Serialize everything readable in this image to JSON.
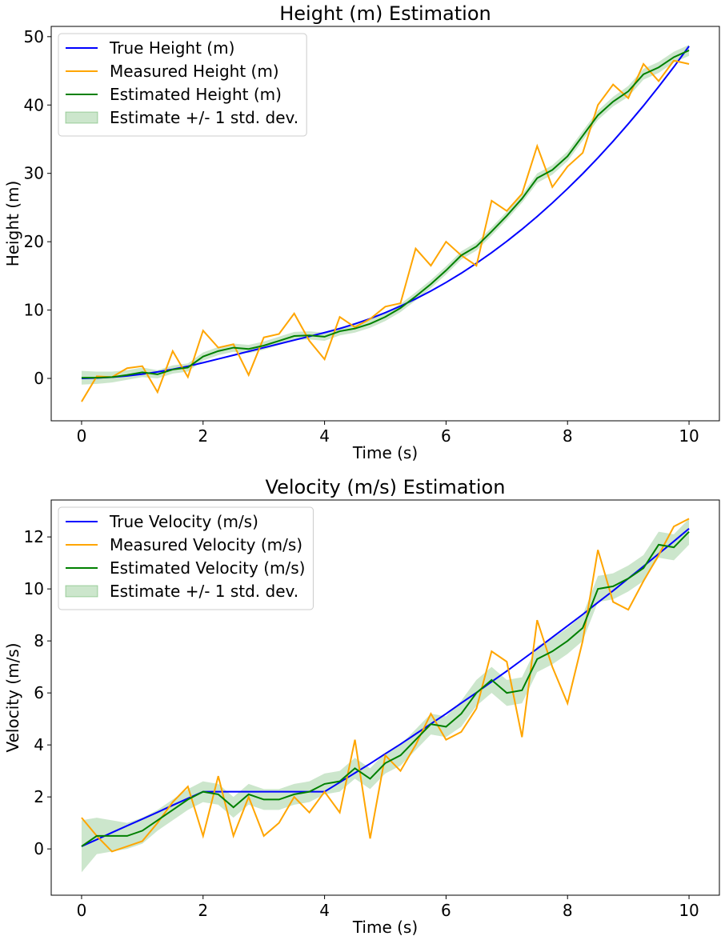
{
  "chart_data": [
    {
      "type": "line",
      "title": "Height (m) Estimation",
      "x_label": "Time (s)",
      "y_label": "Height (m)",
      "x": [
        0,
        0.25,
        0.5,
        0.75,
        1,
        1.25,
        1.5,
        1.75,
        2,
        2.25,
        2.5,
        2.75,
        3,
        3.25,
        3.5,
        3.75,
        4,
        4.25,
        4.5,
        4.75,
        5,
        5.25,
        5.5,
        5.75,
        6,
        6.25,
        6.5,
        6.75,
        7,
        7.25,
        7.5,
        7.75,
        8,
        8.25,
        8.5,
        8.75,
        9,
        9.25,
        9.5,
        9.75,
        10
      ],
      "series": [
        {
          "name": "True Height (m)",
          "color": "#0000ff",
          "values": [
            0,
            0.06,
            0.18,
            0.37,
            0.63,
            0.95,
            1.33,
            1.78,
            2.3,
            2.85,
            3.4,
            3.95,
            4.5,
            5.05,
            5.6,
            6.15,
            6.7,
            7.29,
            7.98,
            8.75,
            9.62,
            10.58,
            11.64,
            12.79,
            14.04,
            15.39,
            16.85,
            18.4,
            20.06,
            21.82,
            23.69,
            25.67,
            27.76,
            29.95,
            32.27,
            34.7,
            37.24,
            39.89,
            42.68,
            45.57,
            48.6
          ]
        },
        {
          "name": "Measured Height (m)",
          "color": "#ffa500",
          "values": [
            -3.4,
            0.3,
            0.2,
            1.5,
            1.8,
            -2.0,
            4.0,
            0.2,
            7.0,
            4.5,
            5.0,
            0.5,
            6.0,
            6.5,
            9.5,
            5.5,
            2.8,
            9.0,
            7.5,
            8.7,
            10.5,
            11.0,
            19.0,
            16.5,
            20.0,
            18.0,
            16.5,
            26.0,
            24.5,
            27.0,
            34.0,
            28.0,
            31.0,
            33.0,
            40.0,
            43.0,
            41.0,
            46.0,
            43.5,
            46.5,
            46.0
          ]
        },
        {
          "name": "Estimated Height (m)",
          "color": "#008000",
          "values": [
            0.1,
            0.1,
            0.2,
            0.5,
            0.9,
            0.6,
            1.3,
            1.6,
            3.2,
            4.0,
            4.5,
            4.3,
            4.8,
            5.5,
            6.2,
            6.3,
            6.1,
            6.9,
            7.3,
            8.0,
            9.0,
            10.3,
            12.0,
            13.8,
            15.8,
            18.0,
            19.3,
            21.5,
            23.8,
            26.3,
            29.3,
            30.5,
            32.5,
            35.5,
            38.5,
            40.5,
            42.0,
            44.5,
            45.5,
            47.0,
            48.0
          ]
        }
      ],
      "band": {
        "name": "Estimate +/- 1 std. dev.",
        "color": "#008000",
        "values": [
          1.0,
          0.9,
          0.8,
          0.7,
          0.7,
          0.6,
          0.6,
          0.6,
          0.6,
          0.6,
          0.6,
          0.6,
          0.6,
          0.6,
          0.6,
          0.6,
          0.6,
          0.6,
          0.6,
          0.6,
          0.6,
          0.6,
          0.6,
          0.6,
          0.6,
          0.6,
          0.6,
          0.6,
          0.6,
          0.6,
          0.7,
          0.7,
          0.7,
          0.7,
          0.7,
          0.7,
          0.8,
          0.8,
          0.8,
          0.8,
          0.8
        ]
      },
      "xlim": [
        -0.5,
        10.5
      ],
      "xticks": [
        0,
        2,
        4,
        6,
        8,
        10
      ],
      "ylim": [
        -6.2,
        51.5
      ],
      "yticks": [
        0,
        10,
        20,
        30,
        40,
        50
      ],
      "legend": "upper left"
    },
    {
      "type": "line",
      "title": "Velocity (m/s) Estimation",
      "x_label": "Time (s)",
      "y_label": "Velocity (m/s)",
      "x": [
        0,
        0.25,
        0.5,
        0.75,
        1,
        1.25,
        1.5,
        1.75,
        2,
        2.25,
        2.5,
        2.75,
        3,
        3.25,
        3.5,
        3.75,
        4,
        4.25,
        4.5,
        4.75,
        5,
        5.25,
        5.5,
        5.75,
        6,
        6.25,
        6.5,
        6.75,
        7,
        7.25,
        7.5,
        7.75,
        8,
        8.25,
        8.5,
        8.75,
        9,
        9.25,
        9.5,
        9.75,
        10
      ],
      "series": [
        {
          "name": "True Velocity (m/s)",
          "color": "#0000ff",
          "values": [
            0.1,
            0.36,
            0.63,
            0.89,
            1.15,
            1.41,
            1.68,
            1.94,
            2.2,
            2.2,
            2.2,
            2.2,
            2.2,
            2.2,
            2.2,
            2.2,
            2.2,
            2.56,
            2.92,
            3.28,
            3.66,
            4.03,
            4.42,
            4.81,
            5.2,
            5.61,
            6.01,
            6.43,
            6.84,
            7.27,
            7.7,
            8.14,
            8.58,
            9.02,
            9.48,
            9.93,
            10.4,
            10.87,
            11.35,
            11.83,
            12.32
          ]
        },
        {
          "name": "Measured Velocity (m/s)",
          "color": "#ffa500",
          "values": [
            1.2,
            0.5,
            -0.1,
            0.1,
            0.3,
            1.0,
            1.8,
            2.4,
            0.5,
            2.8,
            0.5,
            2.0,
            0.5,
            1.0,
            2.0,
            1.4,
            2.2,
            1.4,
            4.2,
            0.4,
            3.6,
            3.0,
            4.0,
            5.2,
            4.2,
            4.5,
            5.4,
            7.6,
            7.2,
            4.3,
            8.8,
            7.0,
            5.6,
            8.0,
            11.5,
            9.5,
            9.2,
            10.3,
            11.3,
            12.4,
            12.7
          ]
        },
        {
          "name": "Estimated Velocity (m/s)",
          "color": "#008000",
          "values": [
            0.1,
            0.5,
            0.5,
            0.5,
            0.7,
            1.1,
            1.5,
            1.9,
            2.2,
            2.1,
            1.6,
            2.1,
            1.9,
            1.9,
            2.1,
            2.2,
            2.5,
            2.6,
            3.1,
            2.7,
            3.3,
            3.6,
            4.2,
            4.8,
            4.7,
            5.2,
            6.0,
            6.5,
            6.0,
            6.1,
            7.3,
            7.6,
            8.0,
            8.5,
            10.0,
            10.1,
            10.4,
            10.8,
            11.7,
            11.6,
            12.2
          ]
        }
      ],
      "band": {
        "name": "Estimate +/- 1 std. dev.",
        "color": "#008000",
        "values": [
          1.0,
          0.7,
          0.6,
          0.5,
          0.5,
          0.4,
          0.4,
          0.4,
          0.4,
          0.4,
          0.4,
          0.4,
          0.4,
          0.4,
          0.4,
          0.4,
          0.4,
          0.4,
          0.4,
          0.4,
          0.4,
          0.4,
          0.4,
          0.4,
          0.4,
          0.5,
          0.5,
          0.5,
          0.5,
          0.5,
          0.5,
          0.5,
          0.5,
          0.5,
          0.5,
          0.5,
          0.5,
          0.5,
          0.5,
          0.5,
          0.5
        ]
      },
      "xlim": [
        -0.5,
        10.5
      ],
      "xticks": [
        0,
        2,
        4,
        6,
        8,
        10
      ],
      "ylim": [
        -1.78,
        13.42
      ],
      "yticks": [
        0,
        2,
        4,
        6,
        8,
        10,
        12
      ],
      "legend": "upper left"
    }
  ]
}
